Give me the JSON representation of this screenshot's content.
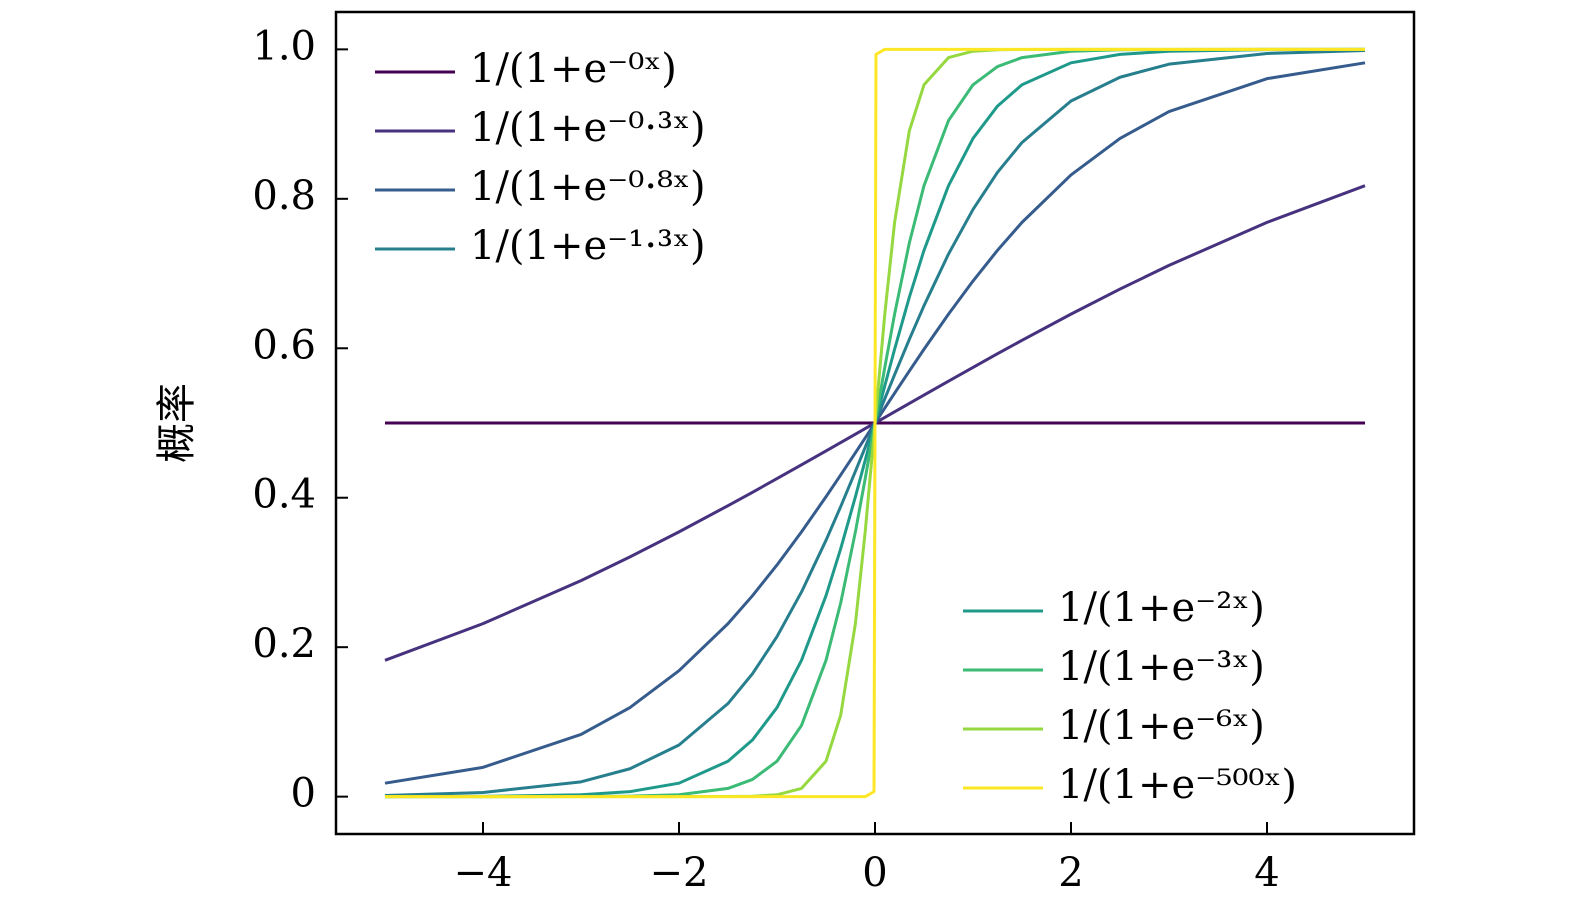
{
  "chart_data": {
    "type": "line",
    "y_label": "概率",
    "x": [
      -5,
      -4,
      -3,
      -2.5,
      -2,
      -1.5,
      -1.25,
      -1,
      -0.75,
      -0.5,
      -0.35,
      -0.2,
      -0.1,
      -0.01,
      0,
      0.01,
      0.1,
      0.2,
      0.35,
      0.5,
      0.75,
      1,
      1.25,
      1.5,
      2,
      2.5,
      3,
      4,
      5
    ],
    "xlim": [
      -5.5,
      5.5
    ],
    "ylim": [
      -0.05,
      1.05
    ],
    "xticks": [
      {
        "value": -4,
        "label": "−4"
      },
      {
        "value": -2,
        "label": "−2"
      },
      0,
      2,
      4
    ],
    "yticks": [
      0,
      0.2,
      0.4,
      0.6,
      0.8,
      {
        "value": 1,
        "label": "1.0"
      }
    ],
    "series": [
      {
        "name": "1/(1+e⁻⁰ˣ)",
        "color": "#440154",
        "legend": "upper left",
        "values": [
          0.5,
          0.5,
          0.5,
          0.5,
          0.5,
          0.5,
          0.5,
          0.5,
          0.5,
          0.5,
          0.5,
          0.5,
          0.5,
          0.5,
          0.5,
          0.5,
          0.5,
          0.5,
          0.5,
          0.5,
          0.5,
          0.5,
          0.5,
          0.5,
          0.5,
          0.5,
          0.5,
          0.5,
          0.5
        ]
      },
      {
        "name": "1/(1+e⁻⁰·³ˣ)",
        "color": "#46327e",
        "legend": "upper left",
        "values": [
          0.1824,
          0.2315,
          0.2891,
          0.3208,
          0.3543,
          0.3894,
          0.4073,
          0.4256,
          0.444,
          0.4626,
          0.4738,
          0.485,
          0.4925,
          0.49925,
          0.5,
          0.50075,
          0.5075,
          0.515,
          0.5262,
          0.5374,
          0.556,
          0.5744,
          0.5927,
          0.6106,
          0.6457,
          0.6792,
          0.7109,
          0.7685,
          0.8176
        ]
      },
      {
        "name": "1/(1+e⁻⁰·⁸ˣ)",
        "color": "#365c8d",
        "legend": "upper left",
        "values": [
          0.018,
          0.0392,
          0.0832,
          0.1192,
          0.1685,
          0.2315,
          0.2689,
          0.31,
          0.3543,
          0.4013,
          0.4305,
          0.4601,
          0.48,
          0.498,
          0.5,
          0.502,
          0.52,
          0.5399,
          0.5695,
          0.5987,
          0.6457,
          0.69,
          0.7311,
          0.7685,
          0.832,
          0.8808,
          0.9168,
          0.9608,
          0.982
        ]
      },
      {
        "name": "1/(1+e⁻¹·³ˣ)",
        "color": "#277f8e",
        "legend": "upper left",
        "values": [
          0.0015,
          0.0055,
          0.0198,
          0.0373,
          0.0691,
          0.1246,
          0.1645,
          0.2142,
          0.2739,
          0.343,
          0.3882,
          0.4354,
          0.4675,
          0.4967,
          0.5,
          0.5033,
          0.5325,
          0.5646,
          0.6118,
          0.657,
          0.7261,
          0.7858,
          0.8355,
          0.8754,
          0.9309,
          0.9627,
          0.9802,
          0.9945,
          0.9985
        ]
      },
      {
        "name": "1/(1+e⁻²ˣ)",
        "color": "#1f9a8a",
        "legend": "lower right",
        "values": [
          5e-05,
          0.0003,
          0.0025,
          0.0067,
          0.018,
          0.0474,
          0.0759,
          0.1192,
          0.1824,
          0.2689,
          0.3318,
          0.4013,
          0.4502,
          0.495,
          0.5,
          0.505,
          0.5498,
          0.5987,
          0.6682,
          0.7311,
          0.8176,
          0.8808,
          0.9241,
          0.9526,
          0.982,
          0.9933,
          0.9975,
          0.9997,
          0.99995
        ]
      },
      {
        "name": "1/(1+e⁻³ˣ)",
        "color": "#3bbb75",
        "legend": "lower right",
        "values": [
          0,
          0,
          0.0001,
          0.0006,
          0.0025,
          0.011,
          0.023,
          0.0474,
          0.0953,
          0.1824,
          0.2592,
          0.3543,
          0.4256,
          0.4925,
          0.5,
          0.5075,
          0.5744,
          0.6457,
          0.7408,
          0.8176,
          0.9047,
          0.9526,
          0.977,
          0.989,
          0.9975,
          0.9994,
          0.9999,
          1,
          1
        ]
      },
      {
        "name": "1/(1+e⁻⁶ˣ)",
        "color": "#95d840",
        "legend": "lower right",
        "values": [
          0,
          0,
          0,
          0,
          0,
          0.0001,
          0.0006,
          0.0025,
          0.011,
          0.0474,
          0.1091,
          0.2315,
          0.3543,
          0.485,
          0.5,
          0.515,
          0.6457,
          0.7685,
          0.8909,
          0.9526,
          0.989,
          0.9975,
          0.9994,
          0.9999,
          1,
          1,
          1,
          1,
          1
        ]
      },
      {
        "name": "1/(1+e⁻⁵⁰⁰ˣ)",
        "color": "#fde725",
        "legend": "lower right",
        "values": [
          0,
          0,
          0,
          0,
          0,
          0,
          0,
          0,
          0,
          0,
          0,
          0,
          0,
          0.0067,
          0.5,
          0.9933,
          1,
          1,
          1,
          1,
          1,
          1,
          1,
          1,
          1,
          1,
          1,
          1,
          1
        ]
      }
    ]
  }
}
